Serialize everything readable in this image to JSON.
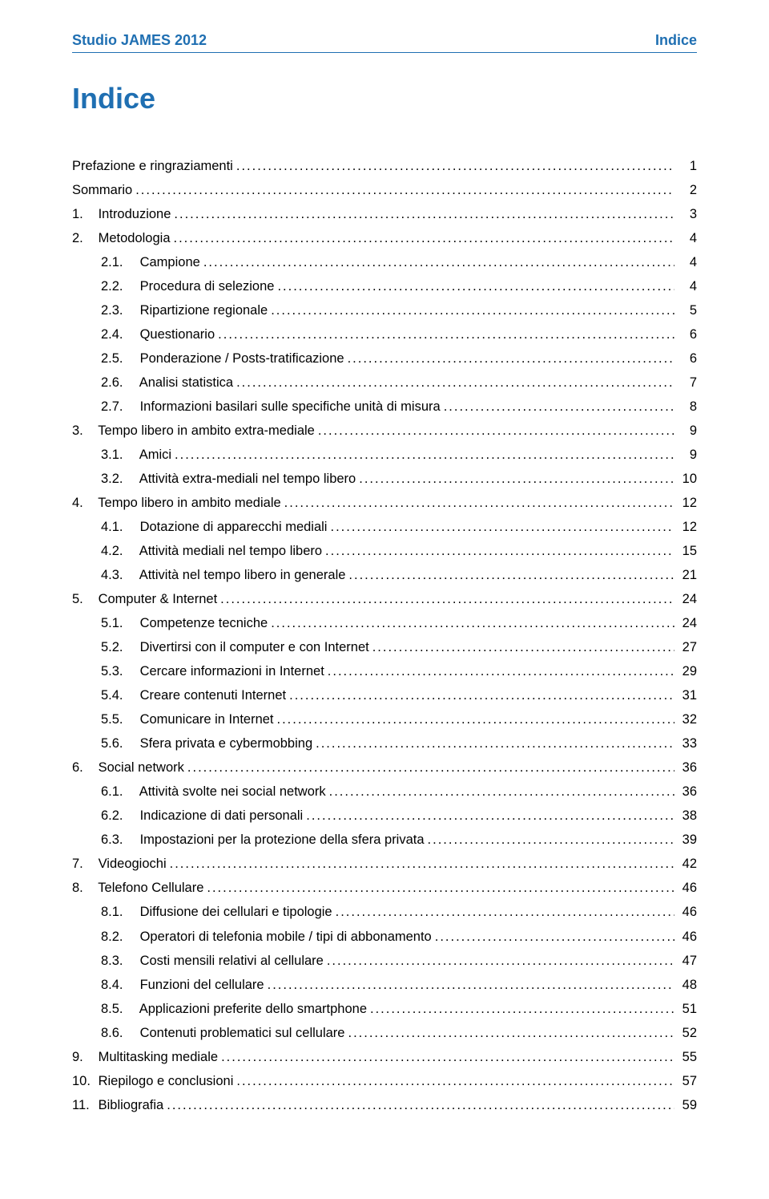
{
  "header": {
    "left": "Studio JAMES 2012",
    "right": "Indice"
  },
  "title": "Indice",
  "colors": {
    "accent": "#1f6fb2",
    "text": "#000000",
    "bg": "#ffffff"
  },
  "toc": [
    {
      "level": 0,
      "num": "",
      "label": "Prefazione e ringraziamenti",
      "page": "1"
    },
    {
      "level": 0,
      "num": "",
      "label": "Sommario",
      "page": "2"
    },
    {
      "level": 0,
      "num": "1.",
      "label": "Introduzione",
      "page": "3"
    },
    {
      "level": 0,
      "num": "2.",
      "label": "Metodologia",
      "page": "4"
    },
    {
      "level": 1,
      "num": "2.1.",
      "label": "Campione",
      "page": "4"
    },
    {
      "level": 1,
      "num": "2.2.",
      "label": "Procedura di selezione",
      "page": "4"
    },
    {
      "level": 1,
      "num": "2.3.",
      "label": "Ripartizione regionale",
      "page": "5"
    },
    {
      "level": 1,
      "num": "2.4.",
      "label": "Questionario",
      "page": "6"
    },
    {
      "level": 1,
      "num": "2.5.",
      "label": "Ponderazione / Posts-tratificazione",
      "page": "6"
    },
    {
      "level": 1,
      "num": "2.6.",
      "label": "Analisi statistica",
      "page": "7"
    },
    {
      "level": 1,
      "num": "2.7.",
      "label": "Informazioni basilari sulle specifiche unità di misura",
      "page": "8"
    },
    {
      "level": 0,
      "num": "3.",
      "label": "Tempo libero in ambito extra-mediale",
      "page": "9"
    },
    {
      "level": 1,
      "num": "3.1.",
      "label": "Amici",
      "page": "9"
    },
    {
      "level": 1,
      "num": "3.2.",
      "label": "Attività extra-mediali nel tempo libero",
      "page": "10"
    },
    {
      "level": 0,
      "num": "4.",
      "label": "Tempo libero in ambito mediale",
      "page": "12"
    },
    {
      "level": 1,
      "num": "4.1.",
      "label": "Dotazione di apparecchi mediali",
      "page": "12"
    },
    {
      "level": 1,
      "num": "4.2.",
      "label": "Attività mediali nel tempo libero",
      "page": "15"
    },
    {
      "level": 1,
      "num": "4.3.",
      "label": "Attività nel tempo libero in generale",
      "page": "21"
    },
    {
      "level": 0,
      "num": "5.",
      "label": "Computer & Internet",
      "page": "24"
    },
    {
      "level": 1,
      "num": "5.1.",
      "label": "Competenze tecniche",
      "page": "24"
    },
    {
      "level": 1,
      "num": "5.2.",
      "label": "Divertirsi con il computer e con Internet",
      "page": "27"
    },
    {
      "level": 1,
      "num": "5.3.",
      "label": "Cercare informazioni in Internet",
      "page": "29"
    },
    {
      "level": 1,
      "num": "5.4.",
      "label": "Creare contenuti Internet",
      "page": "31"
    },
    {
      "level": 1,
      "num": "5.5.",
      "label": "Comunicare in Internet",
      "page": "32"
    },
    {
      "level": 1,
      "num": "5.6.",
      "label": "Sfera privata e cybermobbing",
      "page": "33"
    },
    {
      "level": 0,
      "num": "6.",
      "label": "Social network",
      "page": "36"
    },
    {
      "level": 1,
      "num": "6.1.",
      "label": "Attività svolte nei social network",
      "page": "36"
    },
    {
      "level": 1,
      "num": "6.2.",
      "label": "Indicazione di dati personali",
      "page": "38"
    },
    {
      "level": 1,
      "num": "6.3.",
      "label": "Impostazioni per la protezione della sfera privata",
      "page": "39"
    },
    {
      "level": 0,
      "num": "7.",
      "label": "Videogiochi",
      "page": "42"
    },
    {
      "level": 0,
      "num": "8.",
      "label": "Telefono Cellulare",
      "page": "46"
    },
    {
      "level": 1,
      "num": "8.1.",
      "label": "Diffusione dei cellulari e tipologie",
      "page": "46"
    },
    {
      "level": 1,
      "num": "8.2.",
      "label": "Operatori di telefonia mobile / tipi di abbonamento",
      "page": "46"
    },
    {
      "level": 1,
      "num": "8.3.",
      "label": "Costi mensili relativi al cellulare",
      "page": "47"
    },
    {
      "level": 1,
      "num": "8.4.",
      "label": "Funzioni del cellulare",
      "page": "48"
    },
    {
      "level": 1,
      "num": "8.5.",
      "label": "Applicazioni preferite dello smartphone",
      "page": "51"
    },
    {
      "level": 1,
      "num": "8.6.",
      "label": "Contenuti problematici sul cellulare",
      "page": "52"
    },
    {
      "level": 0,
      "num": "9.",
      "label": "Multitasking mediale",
      "page": "55"
    },
    {
      "level": 0,
      "num": "10.",
      "label": "Riepilogo e conclusioni",
      "page": "57"
    },
    {
      "level": 0,
      "num": "11.",
      "label": "Bibliografia",
      "page": "59"
    }
  ]
}
